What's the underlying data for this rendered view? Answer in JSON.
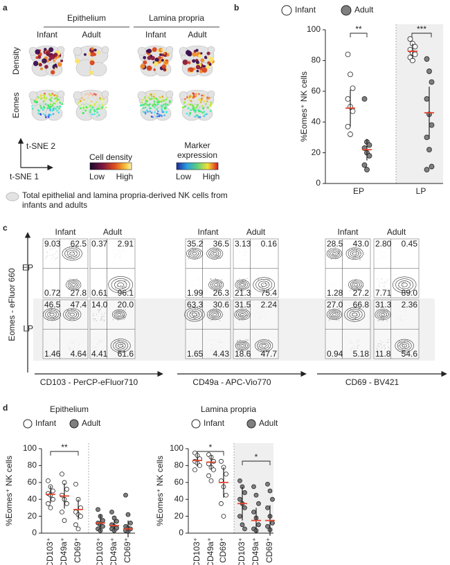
{
  "panel_a": {
    "label": "a",
    "compartments": [
      {
        "title": "Epithelium",
        "columns": [
          "Infant",
          "Adult"
        ]
      },
      {
        "title": "Lamina propria",
        "columns": [
          "Infant",
          "Adult"
        ]
      }
    ],
    "rows": [
      "Density",
      "Eomes"
    ],
    "axes": [
      "t-SNE 2",
      "t-SNE 1"
    ],
    "density_scale": {
      "title": "Cell density",
      "low": "Low",
      "high": "High"
    },
    "marker_scale": {
      "title": [
        "Marker",
        "expression"
      ],
      "low": "Low",
      "high": "High"
    },
    "legend": [
      "Total epithelial and lamina propria-derived NK cells from",
      "infants and adults"
    ]
  },
  "panel_c": {
    "label": "c",
    "y_label": "Eomes - eFluor 660",
    "rows": [
      "EP",
      "LP"
    ],
    "groups": [
      {
        "x_label": "CD103 - PerCP-eFluor710",
        "columns": [
          "Infant",
          "Adult"
        ],
        "quadrants": [
          [
            [
              "9.03",
              "62.5",
              "0.72",
              "27.8"
            ],
            [
              "0.37",
              "2.91",
              "0.61",
              "96.1"
            ]
          ],
          [
            [
              "46.5",
              "47.4",
              "1.46",
              "4.64"
            ],
            [
              "14.0",
              "20.0",
              "4.41",
              "61.6"
            ]
          ]
        ]
      },
      {
        "x_label": "CD49a - APC-Vio770",
        "columns": [
          "Infant",
          "Adult"
        ],
        "quadrants": [
          [
            [
              "35.2",
              "36.5",
              "1.99",
              "26.3"
            ],
            [
              "3.13",
              "0.16",
              "21.3",
              "75.4"
            ]
          ],
          [
            [
              "63.3",
              "30.6",
              "1.65",
              "4.43"
            ],
            [
              "31.5",
              "2.24",
              "18.6",
              "47.7"
            ]
          ]
        ]
      },
      {
        "x_label": "CD69 - BV421",
        "columns": [
          "Infant",
          "Adult"
        ],
        "quadrants": [
          [
            [
              "28.5",
              "43.0",
              "1.28",
              "27.2"
            ],
            [
              "2.80",
              "0.45",
              "7.71",
              "89.0"
            ]
          ],
          [
            [
              "27.0",
              "66.8",
              "0.94",
              "5.18"
            ],
            [
              "31.3",
              "2.36",
              "11.8",
              "54.6"
            ]
          ]
        ]
      }
    ]
  },
  "chart_data": [
    {
      "type": "dot",
      "panel_label": "b",
      "categories": [
        "EP",
        "LP"
      ],
      "ylabel": "%Eomes⁺ NK cells",
      "ylim": [
        0,
        100
      ],
      "yticks": [
        0,
        20,
        40,
        60,
        80,
        100
      ],
      "series": [
        {
          "name": "Infant",
          "color": "#ffffff",
          "values": [
            [
              84,
              71,
              62,
              55,
              50,
              47,
              37,
              32
            ],
            [
              94,
              91,
              89,
              87,
              85,
              84,
              82,
              80
            ]
          ],
          "means": [
            49,
            86
          ],
          "sd": [
            12,
            5
          ]
        },
        {
          "name": "Adult",
          "color": "#7f7f7f",
          "values": [
            [
              55,
              27,
              25,
              23,
              20,
              18,
              12,
              9
            ],
            [
              81,
              73,
              66,
              55,
              45,
              38,
              30,
              22,
              11,
              9
            ]
          ],
          "means": [
            22,
            46
          ],
          "sd": [
            7,
            17
          ]
        }
      ],
      "annotations": [
        "**",
        "***"
      ]
    },
    {
      "type": "dot",
      "panel_label": "d",
      "title": "Epithelium",
      "categories": [
        "CD103⁺",
        "CD49a⁺",
        "CD69⁺",
        "CD103⁺",
        "CD49a⁺",
        "CD69⁺"
      ],
      "ylabel": "%Eomes⁺ NK cells",
      "ylim": [
        0,
        100
      ],
      "yticks": [
        0,
        20,
        40,
        60,
        80,
        100
      ],
      "series": [
        {
          "name": "Infant",
          "color": "#ffffff",
          "values": [
            [
              62,
              55,
              50,
              47,
              45,
              40,
              35,
              30
            ],
            [
              70,
              60,
              52,
              45,
              40,
              35,
              25,
              15
            ],
            [
              58,
              40,
              30,
              25,
              22,
              20,
              10,
              5
            ],
            null,
            null,
            null
          ],
          "means": [
            46,
            44,
            28,
            null,
            null,
            null
          ],
          "sd": [
            10,
            15,
            12,
            null,
            null,
            null
          ]
        },
        {
          "name": "Adult",
          "color": "#7f7f7f",
          "values": [
            null,
            null,
            null,
            [
              28,
              20,
              15,
              12,
              10,
              8,
              5,
              3
            ],
            [
              25,
              18,
              14,
              10,
              8,
              6,
              5,
              3
            ],
            [
              45,
              22,
              12,
              8,
              6,
              5,
              3,
              2
            ]
          ],
          "means": [
            null,
            null,
            null,
            12,
            9,
            5
          ],
          "sd": [
            null,
            null,
            null,
            10,
            7,
            10
          ]
        }
      ],
      "annotations": [
        "**"
      ]
    },
    {
      "type": "dot",
      "title": "Lamina propria",
      "categories": [
        "CD103⁺",
        "CD49a⁺",
        "CD69⁺",
        "CD103⁺",
        "CD49a⁺",
        "CD69⁺"
      ],
      "ylabel": "%Eomes⁺ NK cells",
      "ylim": [
        0,
        100
      ],
      "yticks": [
        0,
        20,
        40,
        60,
        80,
        100
      ],
      "series": [
        {
          "name": "Infant",
          "color": "#ffffff",
          "values": [
            [
              95,
              92,
              88,
              85,
              83,
              80,
              75
            ],
            [
              93,
              90,
              85,
              82,
              78,
              75,
              68,
              62
            ],
            [
              85,
              78,
              70,
              62,
              55,
              45,
              35,
              20
            ],
            null,
            null,
            null
          ],
          "means": [
            86,
            84,
            60,
            null,
            null,
            null
          ],
          "sd": [
            7,
            8,
            18,
            null,
            null,
            null
          ]
        },
        {
          "name": "Adult",
          "color": "#7f7f7f",
          "values": [
            null,
            null,
            null,
            [
              62,
              55,
              48,
              40,
              35,
              30,
              20,
              10,
              5
            ],
            [
              55,
              45,
              35,
              25,
              18,
              10,
              5,
              3
            ],
            [
              58,
              50,
              40,
              30,
              20,
              12,
              8,
              4
            ]
          ],
          "means": [
            null,
            null,
            null,
            35,
            15,
            15
          ],
          "sd": [
            null,
            null,
            null,
            20,
            15,
            18
          ]
        }
      ],
      "annotations": [
        "*",
        "*"
      ]
    }
  ]
}
